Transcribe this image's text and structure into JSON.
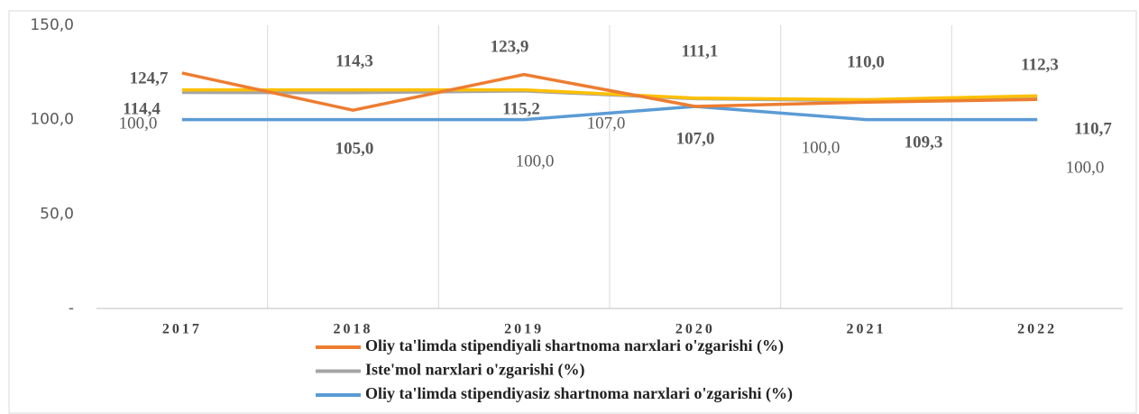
{
  "chart_data": {
    "type": "line",
    "categories": [
      "2017",
      "2018",
      "2019",
      "2020",
      "2021",
      "2022"
    ],
    "ylim": [
      0,
      150
    ],
    "yticks": [
      {
        "value": 0,
        "label": "-"
      },
      {
        "value": 50,
        "label": "50,0"
      },
      {
        "value": 100,
        "label": "100,0"
      },
      {
        "value": 150,
        "label": "150,0"
      }
    ],
    "series": [
      {
        "name": "Oliy ta'limda stipendiyali shartnoma narxlari o'zgarishi (%)",
        "color": "#ed7d31",
        "values": [
          124.7,
          105.0,
          123.9,
          107.0,
          109.3,
          110.7
        ],
        "value_labels": [
          "124,7",
          "105,0",
          "123,9",
          "107,0",
          "109,3",
          "110,7"
        ]
      },
      {
        "name": "Iste'mol narxlari o'zgarishi (%)",
        "color": "#a5a5a5",
        "values": [
          114.4,
          114.3,
          115.2,
          111.1,
          110.0,
          112.3
        ],
        "value_labels": [
          "114,4",
          "114,3",
          "115,2",
          "111,1",
          "110,0",
          "112,3"
        ]
      },
      {
        "color": "#ffc000",
        "values": [
          115.8,
          115.8,
          115.8,
          111.4,
          110.6,
          112.6
        ]
      },
      {
        "name": "Oliy ta'limda stipendiyasiz shartnoma narxlari o'zgarishi (%)",
        "color": "#5b9bd5",
        "values": [
          100.0,
          100.0,
          100.0,
          107.0,
          100.0,
          100.0
        ],
        "value_labels": [
          "100,0",
          null,
          "100,0",
          "107,0",
          "100,0",
          "100,0"
        ]
      }
    ]
  }
}
